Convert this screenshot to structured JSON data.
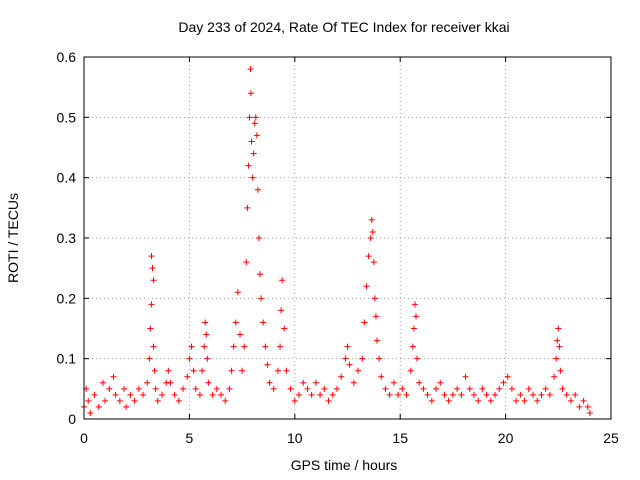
{
  "chart_data": {
    "type": "scatter",
    "title": "Day 233 of 2024, Rate Of TEC Index for receiver kkai",
    "xlabel": "GPS time / hours",
    "ylabel": "ROTI / TECUs",
    "xlim": [
      0,
      25
    ],
    "ylim": [
      0,
      0.6
    ],
    "xticks": [
      0,
      5,
      10,
      15,
      20,
      25
    ],
    "yticks": [
      0,
      0.1,
      0.2,
      0.3,
      0.4,
      0.5,
      0.6
    ],
    "xtick_labels": [
      "0",
      "5",
      "10",
      "15",
      "20",
      "25"
    ],
    "ytick_labels": [
      "0",
      "0.1",
      "0.2",
      "0.3",
      "0.4",
      "0.5",
      "0.6"
    ],
    "grid": true,
    "marker": "+",
    "color": "#ff0000",
    "series": [
      {
        "name": "ROTI",
        "points": [
          [
            0.0,
            0.02
          ],
          [
            0.1,
            0.05
          ],
          [
            0.2,
            0.03
          ],
          [
            0.3,
            0.01
          ],
          [
            0.5,
            0.04
          ],
          [
            0.7,
            0.02
          ],
          [
            0.9,
            0.06
          ],
          [
            1.0,
            0.03
          ],
          [
            1.2,
            0.05
          ],
          [
            1.4,
            0.07
          ],
          [
            1.5,
            0.04
          ],
          [
            1.7,
            0.03
          ],
          [
            1.9,
            0.05
          ],
          [
            2.0,
            0.02
          ],
          [
            2.2,
            0.04
          ],
          [
            2.4,
            0.03
          ],
          [
            2.6,
            0.05
          ],
          [
            2.8,
            0.04
          ],
          [
            3.0,
            0.06
          ],
          [
            3.1,
            0.1
          ],
          [
            3.15,
            0.15
          ],
          [
            3.2,
            0.19
          ],
          [
            3.2,
            0.27
          ],
          [
            3.25,
            0.25
          ],
          [
            3.3,
            0.23
          ],
          [
            3.3,
            0.12
          ],
          [
            3.35,
            0.08
          ],
          [
            3.4,
            0.05
          ],
          [
            3.5,
            0.03
          ],
          [
            3.7,
            0.04
          ],
          [
            3.9,
            0.06
          ],
          [
            4.0,
            0.08
          ],
          [
            4.1,
            0.06
          ],
          [
            4.3,
            0.04
          ],
          [
            4.5,
            0.03
          ],
          [
            4.7,
            0.05
          ],
          [
            4.9,
            0.07
          ],
          [
            5.0,
            0.1
          ],
          [
            5.1,
            0.12
          ],
          [
            5.2,
            0.08
          ],
          [
            5.3,
            0.05
          ],
          [
            5.5,
            0.04
          ],
          [
            5.6,
            0.08
          ],
          [
            5.7,
            0.12
          ],
          [
            5.75,
            0.16
          ],
          [
            5.8,
            0.14
          ],
          [
            5.85,
            0.1
          ],
          [
            5.9,
            0.06
          ],
          [
            6.1,
            0.04
          ],
          [
            6.3,
            0.05
          ],
          [
            6.5,
            0.04
          ],
          [
            6.7,
            0.03
          ],
          [
            6.9,
            0.05
          ],
          [
            7.0,
            0.08
          ],
          [
            7.1,
            0.12
          ],
          [
            7.2,
            0.16
          ],
          [
            7.3,
            0.21
          ],
          [
            7.4,
            0.14
          ],
          [
            7.5,
            0.08
          ],
          [
            7.6,
            0.12
          ],
          [
            7.7,
            0.26
          ],
          [
            7.75,
            0.35
          ],
          [
            7.8,
            0.42
          ],
          [
            7.85,
            0.5
          ],
          [
            7.9,
            0.58
          ],
          [
            7.92,
            0.54
          ],
          [
            7.95,
            0.46
          ],
          [
            8.0,
            0.4
          ],
          [
            8.05,
            0.44
          ],
          [
            8.1,
            0.49
          ],
          [
            8.15,
            0.5
          ],
          [
            8.2,
            0.47
          ],
          [
            8.25,
            0.38
          ],
          [
            8.3,
            0.3
          ],
          [
            8.35,
            0.24
          ],
          [
            8.4,
            0.2
          ],
          [
            8.5,
            0.16
          ],
          [
            8.6,
            0.12
          ],
          [
            8.7,
            0.09
          ],
          [
            8.8,
            0.06
          ],
          [
            9.0,
            0.05
          ],
          [
            9.2,
            0.08
          ],
          [
            9.3,
            0.12
          ],
          [
            9.35,
            0.18
          ],
          [
            9.4,
            0.23
          ],
          [
            9.5,
            0.15
          ],
          [
            9.6,
            0.08
          ],
          [
            9.8,
            0.05
          ],
          [
            10.0,
            0.03
          ],
          [
            10.2,
            0.04
          ],
          [
            10.4,
            0.06
          ],
          [
            10.6,
            0.05
          ],
          [
            10.8,
            0.04
          ],
          [
            11.0,
            0.06
          ],
          [
            11.2,
            0.04
          ],
          [
            11.4,
            0.05
          ],
          [
            11.6,
            0.03
          ],
          [
            11.8,
            0.04
          ],
          [
            12.0,
            0.05
          ],
          [
            12.2,
            0.07
          ],
          [
            12.4,
            0.1
          ],
          [
            12.5,
            0.12
          ],
          [
            12.6,
            0.09
          ],
          [
            12.8,
            0.06
          ],
          [
            13.0,
            0.08
          ],
          [
            13.2,
            0.1
          ],
          [
            13.3,
            0.16
          ],
          [
            13.4,
            0.22
          ],
          [
            13.5,
            0.27
          ],
          [
            13.6,
            0.3
          ],
          [
            13.65,
            0.33
          ],
          [
            13.7,
            0.31
          ],
          [
            13.75,
            0.26
          ],
          [
            13.8,
            0.2
          ],
          [
            13.85,
            0.17
          ],
          [
            13.9,
            0.13
          ],
          [
            14.0,
            0.1
          ],
          [
            14.1,
            0.07
          ],
          [
            14.3,
            0.05
          ],
          [
            14.5,
            0.04
          ],
          [
            14.7,
            0.06
          ],
          [
            14.9,
            0.04
          ],
          [
            15.1,
            0.05
          ],
          [
            15.3,
            0.04
          ],
          [
            15.5,
            0.08
          ],
          [
            15.6,
            0.12
          ],
          [
            15.65,
            0.15
          ],
          [
            15.7,
            0.19
          ],
          [
            15.75,
            0.17
          ],
          [
            15.8,
            0.1
          ],
          [
            15.9,
            0.06
          ],
          [
            16.1,
            0.05
          ],
          [
            16.3,
            0.04
          ],
          [
            16.5,
            0.03
          ],
          [
            16.7,
            0.05
          ],
          [
            16.9,
            0.06
          ],
          [
            17.1,
            0.04
          ],
          [
            17.3,
            0.03
          ],
          [
            17.5,
            0.04
          ],
          [
            17.7,
            0.05
          ],
          [
            17.9,
            0.04
          ],
          [
            18.1,
            0.07
          ],
          [
            18.3,
            0.05
          ],
          [
            18.5,
            0.04
          ],
          [
            18.7,
            0.03
          ],
          [
            18.9,
            0.05
          ],
          [
            19.1,
            0.04
          ],
          [
            19.3,
            0.03
          ],
          [
            19.5,
            0.04
          ],
          [
            19.7,
            0.05
          ],
          [
            19.9,
            0.06
          ],
          [
            20.1,
            0.07
          ],
          [
            20.3,
            0.05
          ],
          [
            20.5,
            0.03
          ],
          [
            20.7,
            0.04
          ],
          [
            20.9,
            0.03
          ],
          [
            21.1,
            0.05
          ],
          [
            21.3,
            0.04
          ],
          [
            21.5,
            0.03
          ],
          [
            21.7,
            0.04
          ],
          [
            21.9,
            0.05
          ],
          [
            22.1,
            0.04
          ],
          [
            22.3,
            0.07
          ],
          [
            22.4,
            0.1
          ],
          [
            22.45,
            0.13
          ],
          [
            22.5,
            0.15
          ],
          [
            22.55,
            0.12
          ],
          [
            22.6,
            0.08
          ],
          [
            22.7,
            0.05
          ],
          [
            22.9,
            0.04
          ],
          [
            23.1,
            0.03
          ],
          [
            23.3,
            0.04
          ],
          [
            23.5,
            0.02
          ],
          [
            23.7,
            0.03
          ],
          [
            23.9,
            0.02
          ],
          [
            24.0,
            0.01
          ]
        ]
      }
    ]
  }
}
